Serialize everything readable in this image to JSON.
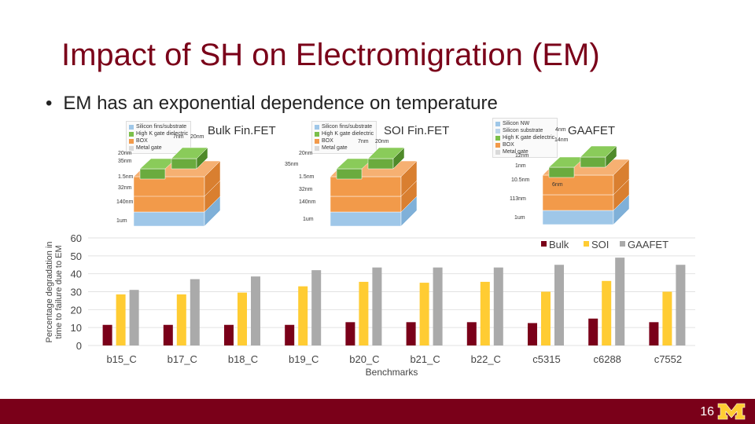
{
  "slide": {
    "title": "Impact of SH on Electromigration (EM)",
    "bullet": "EM has an exponential dependence on temperature",
    "bullet_marker": "•",
    "page_number": "16",
    "logo_icon": "university-m-logo",
    "colors": {
      "maroon": "#7a0019",
      "gold": "#ffcc33",
      "gray": "#aaaaaa"
    }
  },
  "devices": [
    {
      "label": "Bulk Fin.FET",
      "legend": [
        "Silicon fins/substrate",
        "High K gate dielectric",
        "BOX",
        "Metal gate"
      ],
      "dims": [
        "7nm",
        "20nm",
        "20nm",
        "35nm",
        "1.5nm",
        "32nm",
        "140nm",
        "1um"
      ]
    },
    {
      "label": "SOI Fin.FET",
      "legend": [
        "Silicon fins/substrate",
        "High K gate dielectric",
        "BOX",
        "Metal gate"
      ],
      "dims": [
        "7nm",
        "20nm",
        "20nm",
        "35nm",
        "1.5nm",
        "32nm",
        "140nm",
        "1um"
      ]
    },
    {
      "label": "GAAFET",
      "legend": [
        "Silicon NW",
        "Silicon substrate",
        "High K gate dielectric",
        "BOX",
        "Metal gate"
      ],
      "dims": [
        "4nm",
        "14nm",
        "12nm",
        "1nm",
        "10.5nm",
        "6nm",
        "113nm",
        "1um"
      ]
    }
  ],
  "chart_data": {
    "type": "bar",
    "ylabel": "Percentage degradation in time to failure due to EM",
    "xlabel": "Benchmarks",
    "ylim": [
      0,
      60
    ],
    "yticks": [
      0,
      10,
      20,
      30,
      40,
      50,
      60
    ],
    "grid": true,
    "legend_position": "top-right",
    "categories": [
      "b15_C",
      "b17_C",
      "b18_C",
      "b19_C",
      "b20_C",
      "b21_C",
      "b22_C",
      "c5315",
      "c6288",
      "c7552"
    ],
    "series": [
      {
        "name": "Bulk",
        "color": "#7a0019",
        "values": [
          11.5,
          11.5,
          11.5,
          11.5,
          13,
          13,
          13,
          12.5,
          15,
          13
        ]
      },
      {
        "name": "SOI",
        "color": "#ffcc33",
        "values": [
          28.5,
          28.5,
          29.5,
          33,
          35.5,
          35,
          35.5,
          30,
          36,
          30
        ]
      },
      {
        "name": "GAAFET",
        "color": "#aaaaaa",
        "values": [
          31,
          37,
          38.5,
          42,
          43.5,
          43.5,
          43.5,
          45,
          49,
          45
        ]
      }
    ]
  }
}
